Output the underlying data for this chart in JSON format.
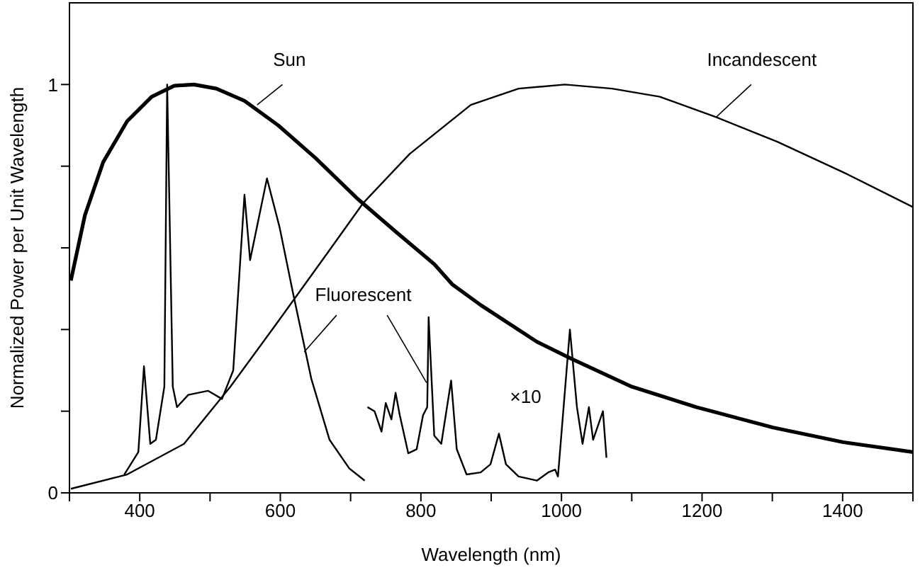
{
  "chart_data": {
    "type": "line",
    "xlabel": "Wavelength (nm)",
    "ylabel": "Normalized Power per Unit Wavelength",
    "xlim": [
      300,
      1500
    ],
    "ylim": [
      0,
      1.2
    ],
    "xticks": [
      {
        "value": 300,
        "label": null
      },
      400,
      {
        "value": 500,
        "label": null
      },
      600,
      {
        "value": 700,
        "label": null
      },
      800,
      {
        "value": 900,
        "label": null
      },
      1000,
      {
        "value": 1100,
        "label": null
      },
      1200,
      {
        "value": 1300,
        "label": null
      },
      1400,
      {
        "value": 1500,
        "label": null
      }
    ],
    "yticks": [
      0,
      {
        "value": 0.2,
        "label": null
      },
      {
        "value": 0.4,
        "label": null
      },
      {
        "value": 0.6,
        "label": null
      },
      {
        "value": 0.8,
        "label": null
      },
      1
    ],
    "marker": "none",
    "grid": false,
    "annotations": [
      "×10"
    ],
    "series": [
      {
        "name": "Sun",
        "color": "#000000",
        "x": [
          302,
          322,
          348,
          382,
          417,
          449,
          477,
          509,
          549,
          597,
          650,
          710,
          764,
          819,
          845,
          885,
          965,
          1012,
          1100,
          1192,
          1301,
          1401,
          1500
        ],
        "values": [
          0.52,
          0.68,
          0.81,
          0.91,
          0.97,
          0.997,
          1.0,
          0.99,
          0.96,
          0.9,
          0.82,
          0.72,
          0.64,
          0.56,
          0.51,
          0.46,
          0.37,
          0.33,
          0.26,
          0.21,
          0.16,
          0.124,
          0.1
        ]
      },
      {
        "name": "Incandescent",
        "color": "#000000",
        "x": [
          302,
          382,
          463,
          529,
          597,
          664,
          718,
          784,
          871,
          939,
          1005,
          1072,
          1140,
          1220,
          1307,
          1407,
          1500
        ],
        "values": [
          0.01,
          0.045,
          0.12,
          0.26,
          0.42,
          0.58,
          0.71,
          0.83,
          0.95,
          0.99,
          1.0,
          0.99,
          0.97,
          0.92,
          0.86,
          0.78,
          0.7
        ]
      },
      {
        "name": "Fluorescent",
        "color": "#000000",
        "x": [
          378,
          398,
          406,
          415,
          423,
          435,
          439,
          447,
          453,
          469,
          497,
          517,
          533,
          549,
          557,
          581,
          599,
          618,
          644,
          670,
          698,
          720,
          722,
          724,
          734,
          744,
          750,
          758,
          764,
          770,
          782,
          794,
          803,
          809,
          811,
          819,
          829,
          843,
          851,
          865,
          885,
          899,
          911,
          921,
          939,
          965,
          981,
          991,
          995,
          1012,
          1022,
          1030,
          1039,
          1045,
          1059,
          1064
        ],
        "values": [
          0.045,
          0.1,
          0.31,
          0.12,
          0.13,
          0.26,
          1.0,
          0.26,
          0.21,
          0.24,
          0.25,
          0.23,
          0.3,
          0.73,
          0.57,
          0.77,
          0.65,
          0.49,
          0.28,
          0.13,
          0.06,
          0.03,
          null,
          0.21,
          0.2,
          0.15,
          0.22,
          0.18,
          0.245,
          0.19,
          0.097,
          0.107,
          0.19,
          0.21,
          0.43,
          0.14,
          0.12,
          0.275,
          0.107,
          0.045,
          0.05,
          0.07,
          0.145,
          0.07,
          0.04,
          0.03,
          0.05,
          0.057,
          0.04,
          0.4,
          0.21,
          0.12,
          0.21,
          0.13,
          0.2,
          0.086
        ]
      }
    ]
  }
}
